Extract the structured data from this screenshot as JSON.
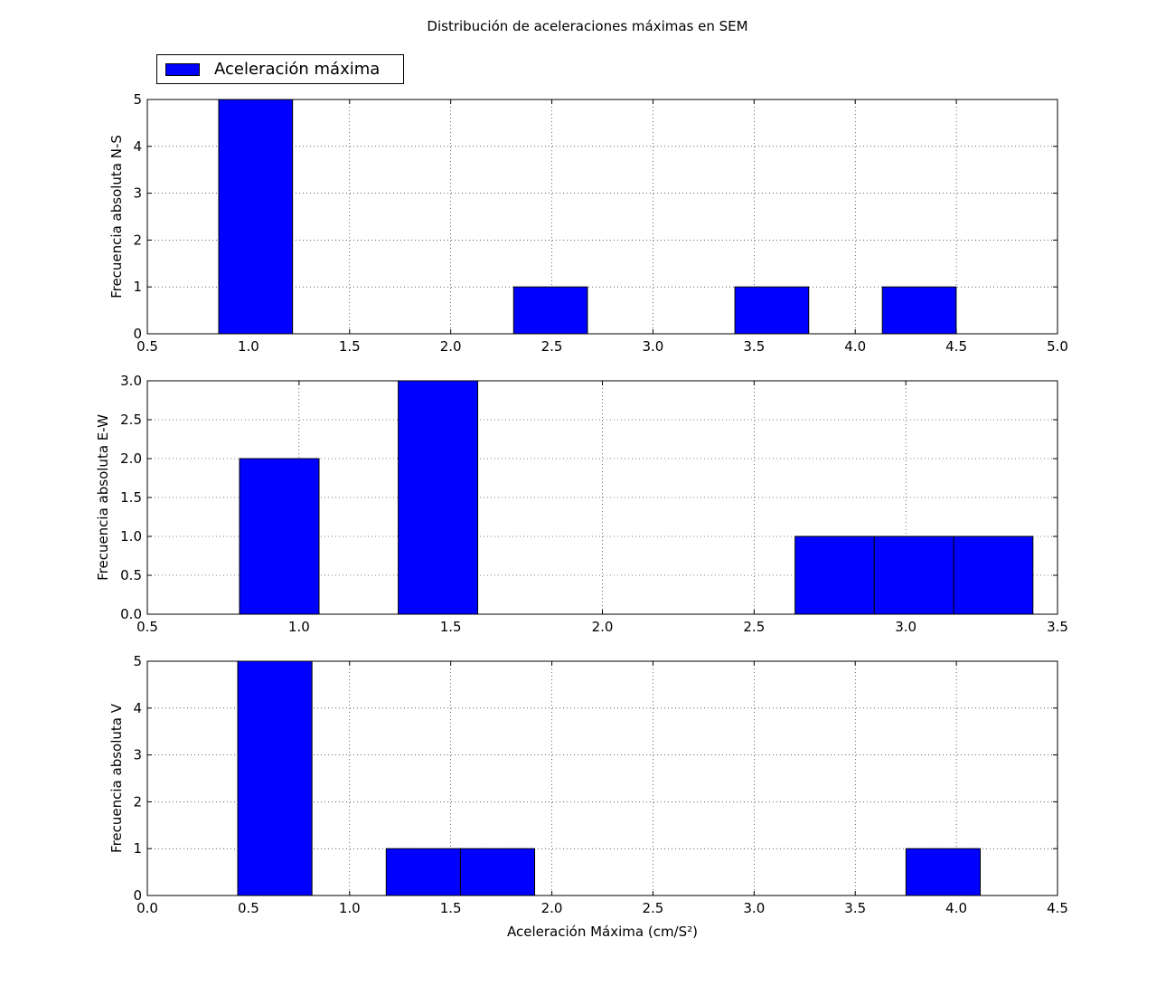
{
  "figure": {
    "title": "Distribución de aceleraciones máximas en SEM",
    "legend": {
      "label": "Aceleración máxima",
      "color": "#0000ff",
      "placement": "upper-left above first plot"
    }
  },
  "chart_data": [
    {
      "type": "bar",
      "subtype": "histogram",
      "ylabel": "Frecuencia absoluta N-S",
      "xlabel": "",
      "xlim": [
        0.5,
        5.0
      ],
      "ylim": [
        0,
        5
      ],
      "xticks": [
        "0.5",
        "1.0",
        "1.5",
        "2.0",
        "2.5",
        "3.0",
        "3.5",
        "4.0",
        "4.5",
        "5.0"
      ],
      "yticks": [
        "0",
        "1",
        "2",
        "3",
        "4",
        "5"
      ],
      "grid": true,
      "color": "#0000ff",
      "bin_edges": [
        0.853,
        1.218,
        1.582,
        1.947,
        2.311,
        2.676,
        3.04,
        3.405,
        3.77,
        4.134,
        4.499
      ],
      "values": [
        5,
        0,
        0,
        0,
        1,
        0,
        0,
        1,
        0,
        1
      ]
    },
    {
      "type": "bar",
      "subtype": "histogram",
      "ylabel": "Frecuencia absoluta E-W",
      "xlabel": "",
      "xlim": [
        0.5,
        3.5
      ],
      "ylim": [
        0,
        3
      ],
      "xticks": [
        "0.5",
        "1.0",
        "1.5",
        "2.0",
        "2.5",
        "3.0",
        "3.5"
      ],
      "yticks": [
        "0.0",
        "0.5",
        "1.0",
        "1.5",
        "2.0",
        "2.5",
        "3.0"
      ],
      "grid": true,
      "color": "#0000ff",
      "bin_edges": [
        0.804,
        1.066,
        1.327,
        1.589,
        1.85,
        2.112,
        2.373,
        2.635,
        2.896,
        3.158,
        3.419
      ],
      "values": [
        2,
        0,
        3,
        0,
        0,
        0,
        0,
        1,
        1,
        1
      ]
    },
    {
      "type": "bar",
      "subtype": "histogram",
      "ylabel": "Frecuencia absoluta V",
      "xlabel": "Aceleración Máxima (cm/S²)",
      "xlim": [
        0.0,
        4.5
      ],
      "ylim": [
        0,
        5
      ],
      "xticks": [
        "0.0",
        "0.5",
        "1.0",
        "1.5",
        "2.0",
        "2.5",
        "3.0",
        "3.5",
        "4.0",
        "4.5"
      ],
      "yticks": [
        "0",
        "1",
        "2",
        "3",
        "4",
        "5"
      ],
      "grid": true,
      "color": "#0000ff",
      "bin_edges": [
        0.447,
        0.814,
        1.181,
        1.548,
        1.915,
        2.283,
        2.65,
        3.017,
        3.384,
        3.751,
        4.118
      ],
      "values": [
        5,
        0,
        1,
        1,
        0,
        0,
        0,
        0,
        0,
        1
      ]
    }
  ]
}
